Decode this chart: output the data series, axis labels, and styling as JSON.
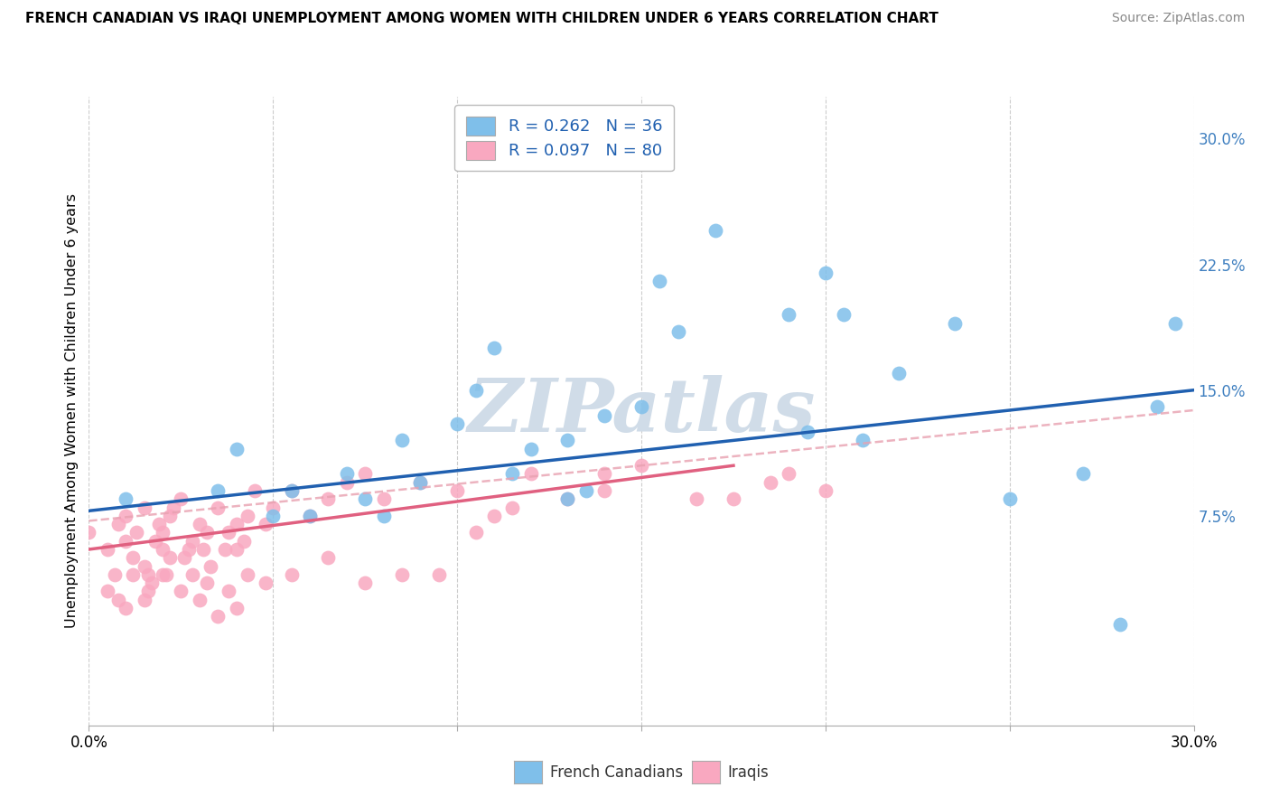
{
  "title": "FRENCH CANADIAN VS IRAQI UNEMPLOYMENT AMONG WOMEN WITH CHILDREN UNDER 6 YEARS CORRELATION CHART",
  "source": "Source: ZipAtlas.com",
  "ylabel": "Unemployment Among Women with Children Under 6 years",
  "legend1_label": "R = 0.262   N = 36",
  "legend2_label": "R = 0.097   N = 80",
  "blue_color": "#7fbfea",
  "pink_color": "#f9a8c0",
  "blue_line_color": "#2060b0",
  "pink_line_color": "#e06080",
  "dashed_line_color": "#e8a0b0",
  "legend_text_color": "#2060b0",
  "right_axis_color": "#4080c0",
  "bottom_label_color": "#333333",
  "watermark_color": "#d0dce8",
  "watermark": "ZIPatlas",
  "xmin": 0.0,
  "xmax": 0.3,
  "ymin": -0.05,
  "ymax": 0.325,
  "yticks": [
    0.075,
    0.15,
    0.225,
    0.3
  ],
  "ytick_labels": [
    "7.5%",
    "15.0%",
    "22.5%",
    "30.0%"
  ],
  "blue_line_x0": 0.0,
  "blue_line_y0": 0.078,
  "blue_line_x1": 0.3,
  "blue_line_y1": 0.15,
  "pink_line_x0": 0.0,
  "pink_line_y0": 0.055,
  "pink_line_x1": 0.175,
  "pink_line_y1": 0.105,
  "dashed_line_x0": 0.0,
  "dashed_line_y0": 0.072,
  "dashed_line_x1": 0.3,
  "dashed_line_y1": 0.138,
  "blue_scatter_x": [
    0.01,
    0.035,
    0.04,
    0.05,
    0.055,
    0.06,
    0.07,
    0.075,
    0.08,
    0.085,
    0.09,
    0.1,
    0.105,
    0.11,
    0.115,
    0.12,
    0.13,
    0.135,
    0.14,
    0.155,
    0.16,
    0.17,
    0.19,
    0.195,
    0.2,
    0.205,
    0.21,
    0.22,
    0.235,
    0.25,
    0.27,
    0.28,
    0.29,
    0.295,
    0.13,
    0.15
  ],
  "blue_scatter_y": [
    0.085,
    0.09,
    0.115,
    0.075,
    0.09,
    0.075,
    0.1,
    0.085,
    0.075,
    0.12,
    0.095,
    0.13,
    0.15,
    0.175,
    0.1,
    0.115,
    0.12,
    0.09,
    0.135,
    0.215,
    0.185,
    0.245,
    0.195,
    0.125,
    0.22,
    0.195,
    0.12,
    0.16,
    0.19,
    0.085,
    0.1,
    0.01,
    0.14,
    0.19,
    0.085,
    0.14
  ],
  "pink_scatter_x": [
    0.0,
    0.005,
    0.007,
    0.008,
    0.01,
    0.01,
    0.012,
    0.013,
    0.015,
    0.015,
    0.016,
    0.017,
    0.018,
    0.019,
    0.02,
    0.02,
    0.021,
    0.022,
    0.023,
    0.025,
    0.026,
    0.027,
    0.028,
    0.03,
    0.031,
    0.032,
    0.033,
    0.035,
    0.037,
    0.038,
    0.04,
    0.04,
    0.042,
    0.043,
    0.045,
    0.048,
    0.05,
    0.055,
    0.06,
    0.065,
    0.07,
    0.075,
    0.08,
    0.09,
    0.1,
    0.11,
    0.12,
    0.13,
    0.14,
    0.15,
    0.175,
    0.19,
    0.2,
    0.01,
    0.015,
    0.02,
    0.025,
    0.03,
    0.035,
    0.04,
    0.005,
    0.008,
    0.012,
    0.016,
    0.022,
    0.028,
    0.032,
    0.038,
    0.043,
    0.048,
    0.055,
    0.065,
    0.075,
    0.085,
    0.095,
    0.105,
    0.115,
    0.14,
    0.165,
    0.185
  ],
  "pink_scatter_y": [
    0.065,
    0.055,
    0.04,
    0.07,
    0.06,
    0.075,
    0.05,
    0.065,
    0.08,
    0.045,
    0.04,
    0.035,
    0.06,
    0.07,
    0.055,
    0.065,
    0.04,
    0.075,
    0.08,
    0.085,
    0.05,
    0.055,
    0.06,
    0.07,
    0.055,
    0.065,
    0.045,
    0.08,
    0.055,
    0.065,
    0.07,
    0.055,
    0.06,
    0.075,
    0.09,
    0.07,
    0.08,
    0.09,
    0.075,
    0.085,
    0.095,
    0.1,
    0.085,
    0.095,
    0.09,
    0.075,
    0.1,
    0.085,
    0.1,
    0.105,
    0.085,
    0.1,
    0.09,
    0.02,
    0.025,
    0.04,
    0.03,
    0.025,
    0.015,
    0.02,
    0.03,
    0.025,
    0.04,
    0.03,
    0.05,
    0.04,
    0.035,
    0.03,
    0.04,
    0.035,
    0.04,
    0.05,
    0.035,
    0.04,
    0.04,
    0.065,
    0.08,
    0.09,
    0.085,
    0.095
  ],
  "bottom_legend_items": [
    {
      "label": "French Canadians",
      "color": "#7fbfea"
    },
    {
      "label": "Iraqis",
      "color": "#f9a8c0"
    }
  ]
}
